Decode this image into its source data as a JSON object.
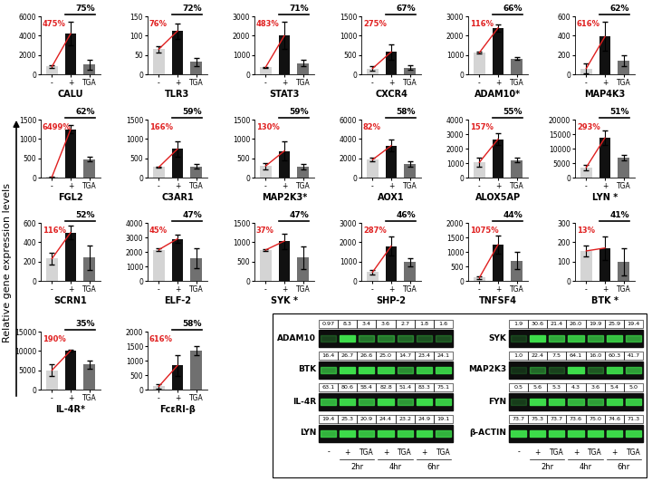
{
  "y_label": "Relative gene expression levels",
  "chart_data": [
    {
      "type": "bar",
      "x_label": "CALU",
      "categories": [
        "-",
        "+",
        "TGA"
      ],
      "values": [
        800,
        4200,
        1000
      ],
      "errors": [
        100,
        1200,
        500
      ],
      "ylim": [
        0,
        6000
      ],
      "yticks": [
        0,
        2000,
        4000,
        6000
      ],
      "annotations": [
        "475%",
        "75%"
      ],
      "colors": [
        "#d4d4d4",
        "#111111",
        "#707070"
      ]
    },
    {
      "type": "bar",
      "x_label": "TLR3",
      "categories": [
        "-",
        "+",
        "TGA"
      ],
      "values": [
        65,
        112,
        32
      ],
      "errors": [
        8,
        20,
        10
      ],
      "ylim": [
        0,
        150
      ],
      "yticks": [
        0,
        50,
        100,
        150
      ],
      "annotations": [
        "76%",
        "72%"
      ],
      "colors": [
        "#d4d4d4",
        "#111111",
        "#707070"
      ]
    },
    {
      "type": "bar",
      "x_label": "STAT3",
      "categories": [
        "-",
        "+",
        "TGA"
      ],
      "values": [
        370,
        2000,
        580
      ],
      "errors": [
        20,
        700,
        150
      ],
      "ylim": [
        0,
        3000
      ],
      "yticks": [
        0,
        1000,
        2000,
        3000
      ],
      "annotations": [
        "483%",
        "71%"
      ],
      "colors": [
        "#d4d4d4",
        "#111111",
        "#707070"
      ]
    },
    {
      "type": "bar",
      "x_label": "CXCR4",
      "categories": [
        "-",
        "+",
        "TGA"
      ],
      "values": [
        150,
        580,
        170
      ],
      "errors": [
        60,
        200,
        60
      ],
      "ylim": [
        0,
        1500
      ],
      "yticks": [
        0,
        500,
        1000,
        1500
      ],
      "annotations": [
        "275%",
        "67%"
      ],
      "colors": [
        "#d4d4d4",
        "#111111",
        "#707070"
      ]
    },
    {
      "type": "bar",
      "x_label": "ADAM10*",
      "categories": [
        "-",
        "+",
        "TGA"
      ],
      "values": [
        1120,
        2400,
        820
      ],
      "errors": [
        50,
        200,
        60
      ],
      "ylim": [
        0,
        3000
      ],
      "yticks": [
        0,
        1000,
        2000,
        3000
      ],
      "annotations": [
        "116%",
        "66%"
      ],
      "colors": [
        "#d4d4d4",
        "#111111",
        "#707070"
      ]
    },
    {
      "type": "bar",
      "x_label": "MAP4K3",
      "categories": [
        "-",
        "+",
        "TGA"
      ],
      "values": [
        60,
        390,
        140
      ],
      "errors": [
        50,
        150,
        60
      ],
      "ylim": [
        0,
        600
      ],
      "yticks": [
        0,
        200,
        400,
        600
      ],
      "annotations": [
        "616%",
        "62%"
      ],
      "colors": [
        "#d4d4d4",
        "#111111",
        "#707070"
      ]
    },
    {
      "type": "bar",
      "x_label": "FGL2",
      "categories": [
        "-",
        "+",
        "TGA"
      ],
      "values": [
        18,
        1250,
        480
      ],
      "errors": [
        10,
        100,
        50
      ],
      "ylim": [
        0,
        1500
      ],
      "yticks": [
        0,
        500,
        1000,
        1500
      ],
      "annotations": [
        "6499%",
        "62%"
      ],
      "colors": [
        "#d4d4d4",
        "#111111",
        "#707070"
      ]
    },
    {
      "type": "bar",
      "x_label": "C3AR1",
      "categories": [
        "-",
        "+",
        "TGA"
      ],
      "values": [
        270,
        740,
        290
      ],
      "errors": [
        20,
        200,
        60
      ],
      "ylim": [
        0,
        1500
      ],
      "yticks": [
        0,
        500,
        1000,
        1500
      ],
      "annotations": [
        "166%",
        "59%"
      ],
      "colors": [
        "#d4d4d4",
        "#111111",
        "#707070"
      ]
    },
    {
      "type": "bar",
      "x_label": "MAP2K3*",
      "categories": [
        "-",
        "+",
        "TGA"
      ],
      "values": [
        300,
        690,
        280
      ],
      "errors": [
        80,
        250,
        80
      ],
      "ylim": [
        0,
        1500
      ],
      "yticks": [
        0,
        500,
        1000,
        1500
      ],
      "annotations": [
        "130%",
        "59%"
      ],
      "colors": [
        "#d4d4d4",
        "#111111",
        "#707070"
      ]
    },
    {
      "type": "bar",
      "x_label": "AOX1",
      "categories": [
        "-",
        "+",
        "TGA"
      ],
      "values": [
        1850,
        3300,
        1400
      ],
      "errors": [
        200,
        600,
        300
      ],
      "ylim": [
        0,
        6000
      ],
      "yticks": [
        0,
        2000,
        4000,
        6000
      ],
      "annotations": [
        "82%",
        "58%"
      ],
      "colors": [
        "#d4d4d4",
        "#111111",
        "#707070"
      ]
    },
    {
      "type": "bar",
      "x_label": "ALOX5AP",
      "categories": [
        "-",
        "+",
        "TGA"
      ],
      "values": [
        1050,
        2650,
        1200
      ],
      "errors": [
        300,
        400,
        150
      ],
      "ylim": [
        0,
        4000
      ],
      "yticks": [
        0,
        1000,
        2000,
        3000,
        4000
      ],
      "annotations": [
        "157%",
        "55%"
      ],
      "colors": [
        "#d4d4d4",
        "#111111",
        "#707070"
      ]
    },
    {
      "type": "bar",
      "x_label": "LYN *",
      "categories": [
        "-",
        "+",
        "TGA"
      ],
      "values": [
        3500,
        13700,
        6800
      ],
      "errors": [
        1000,
        2500,
        1000
      ],
      "ylim": [
        0,
        20000
      ],
      "yticks": [
        0,
        5000,
        10000,
        15000,
        20000
      ],
      "annotations": [
        "293%",
        "51%"
      ],
      "colors": [
        "#d4d4d4",
        "#111111",
        "#707070"
      ]
    },
    {
      "type": "bar",
      "x_label": "SCRN1",
      "categories": [
        "-",
        "+",
        "TGA"
      ],
      "values": [
        230,
        500,
        240
      ],
      "errors": [
        60,
        70,
        130
      ],
      "ylim": [
        0,
        600
      ],
      "yticks": [
        0,
        200,
        400,
        600
      ],
      "annotations": [
        "116%",
        "52%"
      ],
      "colors": [
        "#d4d4d4",
        "#111111",
        "#707070"
      ]
    },
    {
      "type": "bar",
      "x_label": "ELF-2",
      "categories": [
        "-",
        "+",
        "TGA"
      ],
      "values": [
        2150,
        2900,
        1550
      ],
      "errors": [
        100,
        300,
        700
      ],
      "ylim": [
        0,
        4000
      ],
      "yticks": [
        0,
        1000,
        2000,
        3000,
        4000
      ],
      "annotations": [
        "45%",
        "47%"
      ],
      "colors": [
        "#d4d4d4",
        "#111111",
        "#707070"
      ]
    },
    {
      "type": "bar",
      "x_label": "SYK *",
      "categories": [
        "-",
        "+",
        "TGA"
      ],
      "values": [
        800,
        1030,
        600
      ],
      "errors": [
        30,
        200,
        300
      ],
      "ylim": [
        0,
        1500
      ],
      "yticks": [
        0,
        500,
        1000,
        1500
      ],
      "annotations": [
        "37%",
        "47%"
      ],
      "colors": [
        "#d4d4d4",
        "#111111",
        "#707070"
      ]
    },
    {
      "type": "bar",
      "x_label": "SHP-2",
      "categories": [
        "-",
        "+",
        "TGA"
      ],
      "values": [
        450,
        1800,
        970
      ],
      "errors": [
        100,
        500,
        200
      ],
      "ylim": [
        0,
        3000
      ],
      "yticks": [
        0,
        1000,
        2000,
        3000
      ],
      "annotations": [
        "287%",
        "46%"
      ],
      "colors": [
        "#d4d4d4",
        "#111111",
        "#707070"
      ]
    },
    {
      "type": "bar",
      "x_label": "TNFSF4",
      "categories": [
        "-",
        "+",
        "TGA"
      ],
      "values": [
        110,
        1250,
        700
      ],
      "errors": [
        40,
        300,
        300
      ],
      "ylim": [
        0,
        2000
      ],
      "yticks": [
        0,
        500,
        1000,
        1500,
        2000
      ],
      "annotations": [
        "1075%",
        "44%"
      ],
      "colors": [
        "#d4d4d4",
        "#111111",
        "#707070"
      ]
    },
    {
      "type": "bar",
      "x_label": "BTK *",
      "categories": [
        "-",
        "+",
        "TGA"
      ],
      "values": [
        155,
        170,
        100
      ],
      "errors": [
        30,
        60,
        70
      ],
      "ylim": [
        0,
        300
      ],
      "yticks": [
        0,
        100,
        200,
        300
      ],
      "annotations": [
        "13%",
        "41%"
      ],
      "colors": [
        "#d4d4d4",
        "#111111",
        "#707070"
      ]
    },
    {
      "type": "bar",
      "x_label": "IL-4R*",
      "categories": [
        "-",
        "+",
        "TGA"
      ],
      "values": [
        5000,
        10100,
        6500
      ],
      "errors": [
        1500,
        200,
        1000
      ],
      "ylim": [
        0,
        15000
      ],
      "yticks": [
        0,
        5000,
        10000,
        15000
      ],
      "annotations": [
        "190%",
        "35%"
      ],
      "colors": [
        "#d4d4d4",
        "#111111",
        "#707070"
      ]
    },
    {
      "type": "bar",
      "x_label": "FcεRI-β",
      "categories": [
        "-",
        "+",
        "TGA"
      ],
      "values": [
        110,
        830,
        1340
      ],
      "errors": [
        80,
        350,
        150
      ],
      "ylim": [
        0,
        2000
      ],
      "yticks": [
        0,
        500,
        1000,
        1500,
        2000
      ],
      "annotations": [
        "616%",
        "58%"
      ],
      "colors": [
        "#d4d4d4",
        "#111111",
        "#707070"
      ]
    }
  ],
  "blot": {
    "lanes": [
      "-",
      "+",
      "TGA",
      "+",
      "TGA",
      "+",
      "TGA"
    ],
    "times": [
      "2hr",
      "4hr",
      "6hr"
    ],
    "columns": [
      [
        {
          "name": "ADAM10",
          "values": [
            0.97,
            8.3,
            3.4,
            3.6,
            2.7,
            1.8,
            1.6
          ]
        },
        {
          "name": "BTK",
          "values": [
            16.4,
            26.7,
            26.6,
            25.0,
            14.7,
            23.4,
            24.1
          ]
        },
        {
          "name": "IL-4R",
          "values": [
            63.1,
            80.6,
            58.4,
            82.8,
            51.4,
            83.3,
            75.1
          ]
        },
        {
          "name": "LYN",
          "values": [
            19.4,
            25.3,
            20.9,
            24.4,
            23.2,
            24.9,
            19.1
          ]
        }
      ],
      [
        {
          "name": "SYK",
          "values": [
            1.9,
            30.6,
            21.4,
            26.0,
            19.9,
            25.9,
            19.4
          ]
        },
        {
          "name": "MAP2K3",
          "values": [
            1.0,
            22.4,
            7.5,
            64.1,
            16.0,
            60.3,
            41.7
          ]
        },
        {
          "name": "FYN",
          "values": [
            0.5,
            5.6,
            5.3,
            4.3,
            3.6,
            5.4,
            5.0
          ]
        },
        {
          "name": "β-ACTIN",
          "values": [
            73.7,
            75.3,
            73.7,
            73.6,
            75.0,
            74.6,
            71.3
          ]
        }
      ]
    ]
  }
}
